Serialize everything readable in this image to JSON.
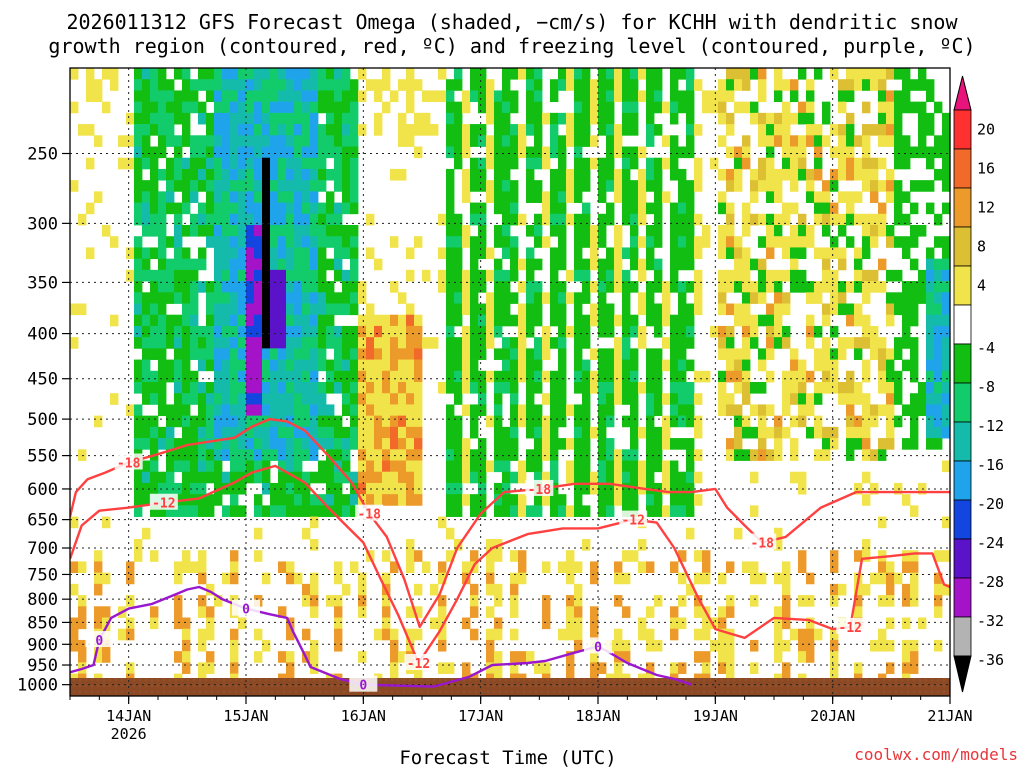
{
  "chart_data": {
    "type": "heatmap",
    "title_line1": "2026011312 GFS Forecast Omega (shaded, −cm/s) for KCHH with dendritic snow",
    "title_line2": "growth region (contoured, red, ºC) and freezing level (contoured, purple, ºC)",
    "xlabel": "Forecast Time (UTC)",
    "watermark": "coolwx.com/models",
    "x_ticks": [
      {
        "t": 0.5,
        "label": "14JAN",
        "sub": "2026"
      },
      {
        "t": 1.5,
        "label": "15JAN",
        "sub": ""
      },
      {
        "t": 2.5,
        "label": "16JAN",
        "sub": ""
      },
      {
        "t": 3.5,
        "label": "17JAN",
        "sub": ""
      },
      {
        "t": 4.5,
        "label": "18JAN",
        "sub": ""
      },
      {
        "t": 5.5,
        "label": "19JAN",
        "sub": ""
      },
      {
        "t": 6.5,
        "label": "20JAN",
        "sub": ""
      },
      {
        "t": 7.5,
        "label": "21JAN",
        "sub": ""
      }
    ],
    "x_range_days": [
      0,
      7.5
    ],
    "y_ticks": [
      250,
      300,
      350,
      400,
      450,
      500,
      550,
      600,
      650,
      700,
      750,
      800,
      850,
      900,
      950,
      1000
    ],
    "y_axis": "pressure (hPa), log scale, inverted",
    "y_range_hpa": [
      200,
      1030
    ],
    "grid": true,
    "colorbar": {
      "labels": [
        "20",
        "16",
        "12",
        "8",
        "4",
        "-4",
        "-8",
        "-12",
        "-16",
        "-20",
        "-24",
        "-28",
        "-32",
        "-36"
      ],
      "colors": [
        "#e8137b",
        "#ff3030",
        "#f26a2a",
        "#ec9b2a",
        "#dcbf33",
        "#f1e34a",
        "#ffffff",
        "#13be13",
        "#12cc6c",
        "#14bbaa",
        "#1fa4ec",
        "#1346e0",
        "#5a13c8",
        "#a513c9",
        "#b3b3b3",
        "#000000"
      ]
    },
    "series": [
      {
        "name": "-18",
        "color": "#ff4040",
        "kind": "contour",
        "points": [
          [
            0,
            645
          ],
          [
            0.05,
            605
          ],
          [
            0.15,
            585
          ],
          [
            0.3,
            575
          ],
          [
            0.5,
            560
          ],
          [
            0.75,
            548
          ],
          [
            1,
            535
          ],
          [
            1.4,
            525
          ],
          [
            1.55,
            510
          ],
          [
            1.7,
            500
          ],
          [
            1.85,
            503
          ],
          [
            2,
            515
          ],
          [
            2.2,
            550
          ],
          [
            2.4,
            590
          ],
          [
            2.55,
            640
          ],
          [
            2.7,
            680
          ],
          [
            2.85,
            760
          ],
          [
            2.98,
            860
          ],
          [
            3.15,
            790
          ],
          [
            3.3,
            700
          ],
          [
            3.5,
            640
          ],
          [
            3.7,
            605
          ],
          [
            4,
            600
          ],
          [
            4.3,
            592
          ],
          [
            4.6,
            592
          ],
          [
            4.9,
            600
          ],
          [
            5.1,
            605
          ],
          [
            5.3,
            605
          ],
          [
            5.5,
            600
          ],
          [
            5.6,
            630
          ],
          [
            5.75,
            660
          ],
          [
            5.9,
            690
          ],
          [
            6.1,
            680
          ],
          [
            6.4,
            630
          ],
          [
            6.7,
            605
          ],
          [
            7,
            605
          ],
          [
            7.3,
            605
          ],
          [
            7.5,
            605
          ]
        ]
      },
      {
        "name": "-12",
        "color": "#ff4040",
        "kind": "contour",
        "points": [
          [
            0,
            720
          ],
          [
            0.1,
            660
          ],
          [
            0.25,
            635
          ],
          [
            0.5,
            630
          ],
          [
            0.8,
            622
          ],
          [
            1.1,
            615
          ],
          [
            1.4,
            590
          ],
          [
            1.55,
            575
          ],
          [
            1.75,
            565
          ],
          [
            2,
            590
          ],
          [
            2.2,
            630
          ],
          [
            2.5,
            690
          ],
          [
            2.65,
            760
          ],
          [
            2.8,
            835
          ],
          [
            2.97,
            945
          ],
          [
            3.15,
            870
          ],
          [
            3.3,
            800
          ],
          [
            3.45,
            730
          ],
          [
            3.6,
            700
          ],
          [
            3.9,
            675
          ],
          [
            4.2,
            665
          ],
          [
            4.5,
            665
          ],
          [
            4.8,
            650
          ],
          [
            5,
            655
          ],
          [
            5.15,
            700
          ],
          [
            5.35,
            795
          ],
          [
            5.5,
            865
          ],
          [
            5.75,
            885
          ],
          [
            6.0,
            840
          ],
          [
            6.3,
            845
          ],
          [
            6.5,
            865
          ],
          [
            6.65,
            860
          ],
          [
            6.75,
            720
          ],
          [
            7.0,
            715
          ],
          [
            7.2,
            710
          ],
          [
            7.35,
            710
          ],
          [
            7.45,
            770
          ],
          [
            7.5,
            775
          ]
        ]
      },
      {
        "name": "0",
        "color": "#9a17cf",
        "kind": "contour",
        "points": [
          [
            0,
            968
          ],
          [
            0.1,
            960
          ],
          [
            0.2,
            950
          ],
          [
            0.25,
            890
          ],
          [
            0.35,
            840
          ],
          [
            0.5,
            820
          ],
          [
            0.7,
            810
          ],
          [
            0.9,
            790
          ],
          [
            1,
            780
          ],
          [
            1.1,
            775
          ],
          [
            1.2,
            785
          ],
          [
            1.3,
            800
          ],
          [
            1.5,
            820
          ],
          [
            1.7,
            832
          ],
          [
            1.85,
            840
          ],
          [
            1.9,
            870
          ],
          [
            2,
            925
          ],
          [
            2.05,
            955
          ],
          [
            2.3,
            985
          ],
          [
            2.5,
            1000
          ],
          [
            3.1,
            1005
          ],
          [
            3.4,
            980
          ],
          [
            3.6,
            950
          ],
          [
            3.9,
            945
          ],
          [
            4.05,
            940
          ],
          [
            4.3,
            920
          ],
          [
            4.5,
            905
          ],
          [
            4.6,
            920
          ],
          [
            4.75,
            945
          ],
          [
            5,
            975
          ],
          [
            5.15,
            985
          ],
          [
            5.3,
            1000
          ]
        ]
      }
    ]
  }
}
